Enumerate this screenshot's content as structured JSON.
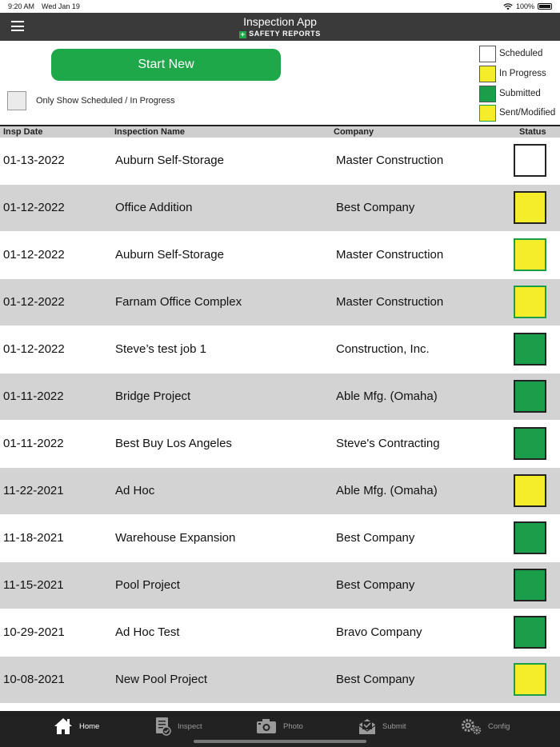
{
  "status_bar": {
    "time": "9:20 AM",
    "date": "Wed Jan 19",
    "battery": "100%"
  },
  "header": {
    "title": "Inspection App",
    "brand": "SAFETY REPORTS",
    "brand_plus": "+"
  },
  "actions": {
    "start_new": "Start New",
    "filter_label": "Only Show Scheduled / In Progress"
  },
  "legend": [
    {
      "label": "Scheduled",
      "fill": "#ffffff",
      "border": "#555555"
    },
    {
      "label": "In Progress",
      "fill": "#f5ec2a",
      "border": "#555555"
    },
    {
      "label": "Submitted",
      "fill": "#1a9e4a",
      "border": "#555555"
    },
    {
      "label": "Sent/Modified",
      "fill": "#f5ec2a",
      "border": "#1a9e4a"
    }
  ],
  "table": {
    "headers": {
      "date": "Insp Date",
      "name": "Inspection Name",
      "company": "Company",
      "status": "Status"
    },
    "rows": [
      {
        "date": "01-13-2022",
        "name": "Auburn Self-Storage",
        "company": "Master Construction",
        "status": "Scheduled"
      },
      {
        "date": "01-12-2022",
        "name": "Office Addition",
        "company": "Best Company",
        "status": "In Progress"
      },
      {
        "date": "01-12-2022",
        "name": "Auburn Self-Storage",
        "company": "Master Construction",
        "status": "Sent/Modified"
      },
      {
        "date": "01-12-2022",
        "name": "Farnam Office Complex",
        "company": "Master Construction",
        "status": "Sent/Modified"
      },
      {
        "date": "01-12-2022",
        "name": "Steve’s test job 1",
        "company": "Construction, Inc.",
        "status": "Submitted"
      },
      {
        "date": "01-11-2022",
        "name": "Bridge Project",
        "company": "Able Mfg. (Omaha)",
        "status": "Submitted"
      },
      {
        "date": "01-11-2022",
        "name": "Best Buy Los Angeles",
        "company": "Steve's Contracting",
        "status": "Submitted"
      },
      {
        "date": "11-22-2021",
        "name": "Ad Hoc",
        "company": "Able Mfg. (Omaha)",
        "status": "In Progress"
      },
      {
        "date": "11-18-2021",
        "name": "Warehouse Expansion",
        "company": "Best Company",
        "status": "Submitted"
      },
      {
        "date": "11-15-2021",
        "name": "Pool Project",
        "company": "Best Company",
        "status": "Submitted"
      },
      {
        "date": "10-29-2021",
        "name": "Ad Hoc Test",
        "company": "Bravo Company",
        "status": "Submitted"
      },
      {
        "date": "10-08-2021",
        "name": "New Pool Project",
        "company": "Best Company",
        "status": "Sent/Modified"
      }
    ]
  },
  "tabs": [
    {
      "label": "Home",
      "icon": "home-icon",
      "active": true
    },
    {
      "label": "Inspect",
      "icon": "clipboard-check-icon",
      "active": false
    },
    {
      "label": "Photo",
      "icon": "camera-icon",
      "active": false
    },
    {
      "label": "Submit",
      "icon": "envelope-icon",
      "active": false
    },
    {
      "label": "Config",
      "icon": "gears-icon",
      "active": false
    }
  ],
  "colors": {
    "header_bg": "#3a3a3a",
    "accent_green": "#1fa84a",
    "row_alt": "#d3d3d3",
    "tabbar_bg": "#222222"
  }
}
